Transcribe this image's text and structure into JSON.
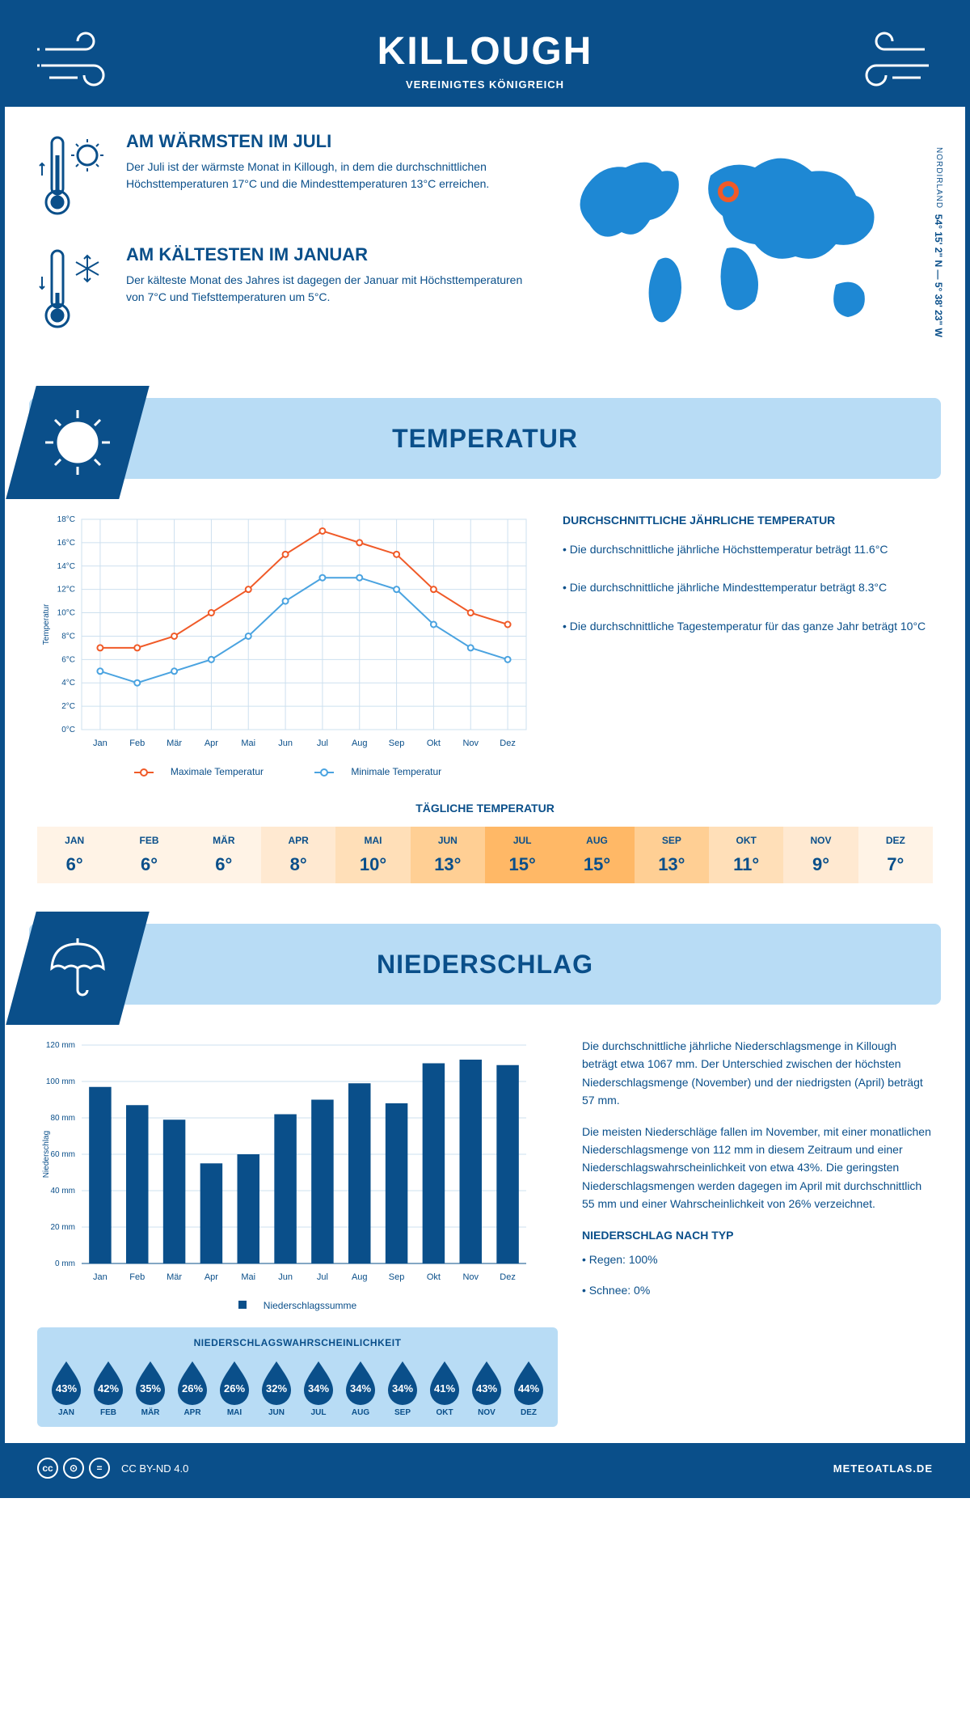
{
  "colors": {
    "primary": "#0a4f8a",
    "light_blue": "#b8dcf5",
    "line_max": "#f05a28",
    "line_min": "#4aa3e0",
    "bar": "#0a4f8a",
    "grid": "#cde0ef"
  },
  "header": {
    "title": "KILLOUGH",
    "subtitle": "VEREINIGTES KÖNIGREICH"
  },
  "coords": {
    "main": "54° 15' 2\" N — 5° 38' 23\" W",
    "sub": "NORDIRLAND"
  },
  "warm": {
    "title": "AM WÄRMSTEN IM JULI",
    "text": "Der Juli ist der wärmste Monat in Killough, in dem die durchschnittlichen Höchsttemperaturen 17°C und die Mindesttemperaturen 13°C erreichen."
  },
  "cold": {
    "title": "AM KÄLTESTEN IM JANUAR",
    "text": "Der kälteste Monat des Jahres ist dagegen der Januar mit Höchsttemperaturen von 7°C und Tiefsttemperaturen um 5°C."
  },
  "section_temp": "TEMPERATUR",
  "section_precip": "NIEDERSCHLAG",
  "temp_chart": {
    "type": "line",
    "months": [
      "Jan",
      "Feb",
      "Mär",
      "Apr",
      "Mai",
      "Jun",
      "Jul",
      "Aug",
      "Sep",
      "Okt",
      "Nov",
      "Dez"
    ],
    "max": [
      7,
      7,
      8,
      10,
      12,
      15,
      17,
      16,
      15,
      12,
      10,
      9
    ],
    "min": [
      5,
      4,
      5,
      6,
      8,
      11,
      13,
      13,
      12,
      9,
      7,
      6
    ],
    "ylabel": "Temperatur",
    "ylim": [
      0,
      18
    ],
    "ytick_step": 2,
    "legend_max": "Maximale Temperatur",
    "legend_min": "Minimale Temperatur"
  },
  "temp_desc": {
    "title": "DURCHSCHNITTLICHE JÄHRLICHE TEMPERATUR",
    "b1": "• Die durchschnittliche jährliche Höchsttemperatur beträgt 11.6°C",
    "b2": "• Die durchschnittliche jährliche Mindesttemperatur beträgt 8.3°C",
    "b3": "• Die durchschnittliche Tagestemperatur für das ganze Jahr beträgt 10°C"
  },
  "daily": {
    "title": "TÄGLICHE TEMPERATUR",
    "months": [
      "JAN",
      "FEB",
      "MÄR",
      "APR",
      "MAI",
      "JUN",
      "JUL",
      "AUG",
      "SEP",
      "OKT",
      "NOV",
      "DEZ"
    ],
    "values": [
      "6°",
      "6°",
      "6°",
      "8°",
      "10°",
      "13°",
      "15°",
      "15°",
      "13°",
      "11°",
      "9°",
      "7°"
    ],
    "colors": [
      "#fff3e6",
      "#fff3e6",
      "#fff3e6",
      "#ffe9d1",
      "#ffdfb8",
      "#ffcf94",
      "#ffb866",
      "#ffb866",
      "#ffcf94",
      "#ffdfb8",
      "#ffe9d1",
      "#fff3e6"
    ]
  },
  "precip_chart": {
    "type": "bar",
    "months": [
      "Jan",
      "Feb",
      "Mär",
      "Apr",
      "Mai",
      "Jun",
      "Jul",
      "Aug",
      "Sep",
      "Okt",
      "Nov",
      "Dez"
    ],
    "values": [
      97,
      87,
      79,
      55,
      60,
      82,
      90,
      99,
      88,
      110,
      112,
      109
    ],
    "ylabel": "Niederschlag",
    "ylim": [
      0,
      120
    ],
    "ytick_step": 20,
    "legend": "Niederschlagssumme"
  },
  "prob": {
    "title": "NIEDERSCHLAGSWAHRSCHEINLICHKEIT",
    "months": [
      "JAN",
      "FEB",
      "MÄR",
      "APR",
      "MAI",
      "JUN",
      "JUL",
      "AUG",
      "SEP",
      "OKT",
      "NOV",
      "DEZ"
    ],
    "values": [
      "43%",
      "42%",
      "35%",
      "26%",
      "26%",
      "32%",
      "34%",
      "34%",
      "34%",
      "41%",
      "43%",
      "44%"
    ]
  },
  "precip_desc": {
    "p1": "Die durchschnittliche jährliche Niederschlagsmenge in Killough beträgt etwa 1067 mm. Der Unterschied zwischen der höchsten Niederschlagsmenge (November) und der niedrigsten (April) beträgt 57 mm.",
    "p2": "Die meisten Niederschläge fallen im November, mit einer monatlichen Niederschlagsmenge von 112 mm in diesem Zeitraum und einer Niederschlagswahrscheinlichkeit von etwa 43%. Die geringsten Niederschlagsmengen werden dagegen im April mit durchschnittlich 55 mm und einer Wahrscheinlichkeit von 26% verzeichnet.",
    "type_title": "NIEDERSCHLAG NACH TYP",
    "t1": "• Regen: 100%",
    "t2": "• Schnee: 0%"
  },
  "footer": {
    "license": "CC BY-ND 4.0",
    "site": "METEOATLAS.DE"
  }
}
